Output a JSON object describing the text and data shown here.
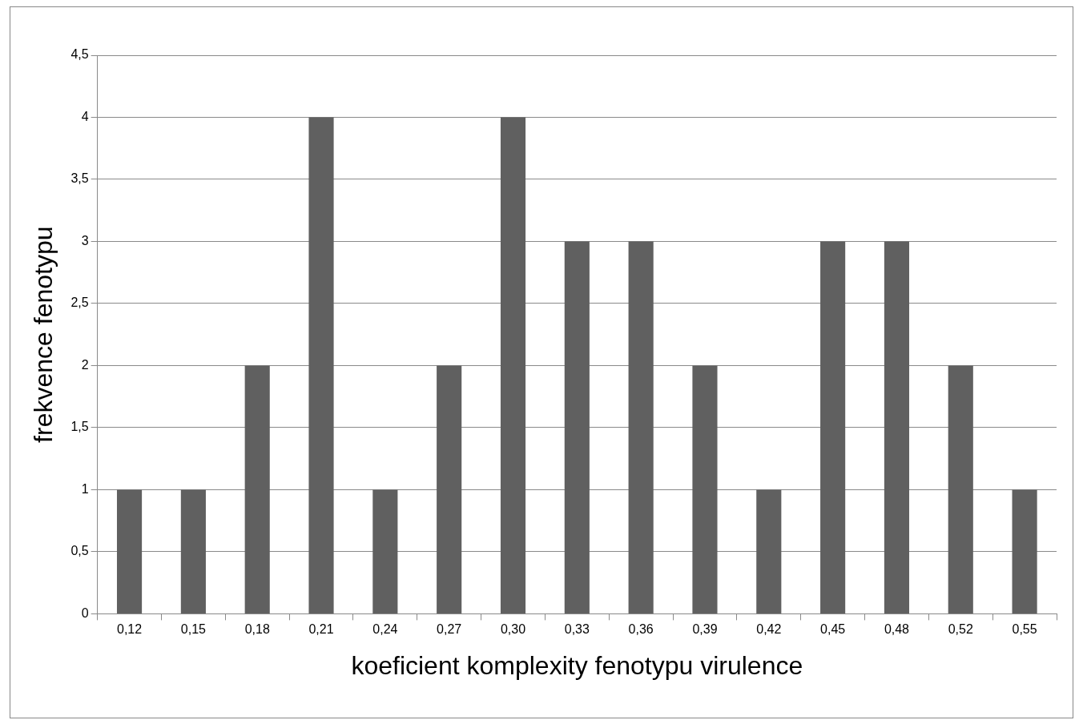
{
  "chart_data": {
    "type": "bar",
    "xlabel": "koeficient komplexity fenotypu virulence",
    "ylabel": "frekvence fenotypu",
    "categories": [
      "0,12",
      "0,15",
      "0,18",
      "0,21",
      "0,24",
      "0,27",
      "0,30",
      "0,33",
      "0,36",
      "0,39",
      "0,42",
      "0,45",
      "0,48",
      "0,52",
      "0,55"
    ],
    "values": [
      1,
      1,
      2,
      4,
      1,
      2,
      4,
      3,
      3,
      2,
      1,
      3,
      3,
      2,
      1
    ],
    "color": "#606060",
    "ylim": [
      0,
      4.5
    ],
    "yticks": [
      0,
      {
        "value": 0.5,
        "label": "0,5"
      },
      1,
      {
        "value": 1.5,
        "label": "1,5"
      },
      2,
      {
        "value": 2.5,
        "label": "2,5"
      },
      3,
      {
        "value": 3.5,
        "label": "3,5"
      },
      4,
      {
        "value": 4.5,
        "label": "4,5"
      }
    ],
    "grid": "y",
    "legend": false
  }
}
